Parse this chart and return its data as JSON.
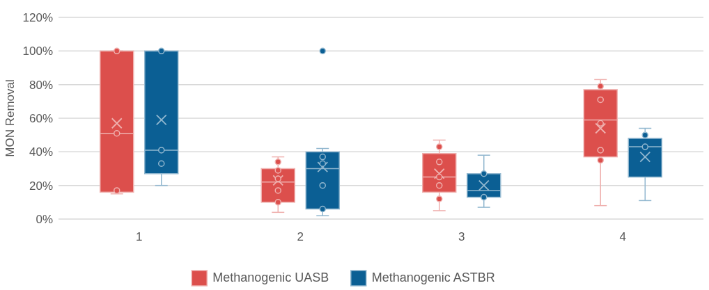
{
  "chart_data": {
    "type": "box",
    "ylabel": "MON Removal",
    "categories": [
      "1",
      "2",
      "3",
      "4"
    ],
    "ylim": [
      0,
      120
    ],
    "yticks": [
      {
        "value": 0,
        "label": "0%"
      },
      {
        "value": 20,
        "label": "20%"
      },
      {
        "value": 40,
        "label": "40%"
      },
      {
        "value": 60,
        "label": "60%"
      },
      {
        "value": 80,
        "label": "80%"
      },
      {
        "value": 100,
        "label": "100%"
      },
      {
        "value": 120,
        "label": "120%"
      }
    ],
    "grid": "y",
    "legend": "bottom",
    "series": [
      {
        "name": "Methanogenic UASB",
        "color": "#dc4f4c",
        "boxes": [
          {
            "low": 15,
            "q1": 16,
            "median": 51,
            "q3": 100,
            "high": 100,
            "mean": 57
          },
          {
            "low": 4,
            "q1": 10,
            "median": 22,
            "q3": 30,
            "high": 37,
            "mean": 23
          },
          {
            "low": 5,
            "q1": 16,
            "median": 25,
            "q3": 39,
            "high": 47,
            "mean": 27
          },
          {
            "low": 8,
            "q1": 37,
            "median": 59,
            "q3": 77,
            "high": 83,
            "mean": 54
          }
        ]
      },
      {
        "name": "Methanogenic ASTBR",
        "color": "#0b5f94",
        "boxes": [
          {
            "low": 20,
            "q1": 27,
            "median": 41,
            "q3": 100,
            "high": 100,
            "mean": 59
          },
          {
            "low": 2,
            "q1": 6,
            "median": 30,
            "q3": 40,
            "high": 42,
            "mean": 31,
            "outliers": [
              100
            ]
          },
          {
            "low": 7,
            "q1": 13,
            "median": 17,
            "q3": 27,
            "high": 38,
            "mean": 20
          },
          {
            "low": 11,
            "q1": 25,
            "median": 43,
            "q3": 48,
            "high": 54,
            "mean": 37
          }
        ]
      },
      {
        "type": "scatter",
        "color": "#dc4f4c",
        "x": [
          "1",
          "1",
          "1",
          "2",
          "2",
          "2",
          "2",
          "2",
          "3",
          "3",
          "3",
          "3",
          "3",
          "4",
          "4",
          "4",
          "4",
          "4"
        ],
        "values": [
          100,
          51,
          17,
          34,
          29,
          24,
          17,
          10,
          43,
          34,
          25,
          20,
          12,
          79,
          71,
          57,
          41,
          35
        ]
      },
      {
        "type": "scatter",
        "color": "#0b5f94",
        "x": [
          "1",
          "1",
          "1",
          "2",
          "2",
          "2",
          "2",
          "3",
          "3",
          "4",
          "4"
        ],
        "values": [
          100,
          41,
          33,
          37,
          33,
          20,
          6,
          27,
          13,
          50,
          43
        ]
      }
    ]
  }
}
